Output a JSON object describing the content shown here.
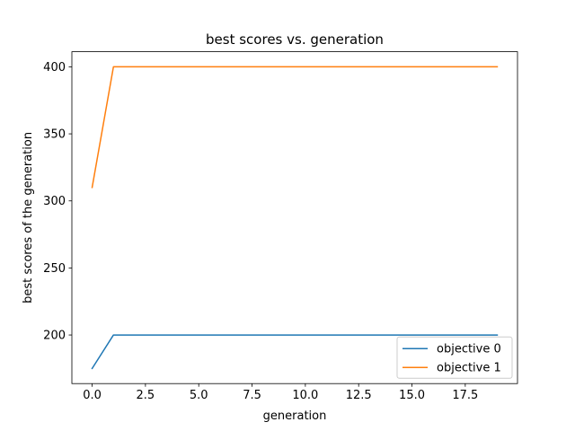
{
  "chart_data": {
    "type": "line",
    "title": "best scores vs. generation",
    "xlabel": "generation",
    "ylabel": "best scores of the generation",
    "x": [
      0,
      1,
      2,
      3,
      4,
      5,
      6,
      7,
      8,
      9,
      10,
      11,
      12,
      13,
      14,
      15,
      16,
      17,
      18,
      19
    ],
    "series": [
      {
        "name": "objective 0",
        "color": "#1f77b4",
        "values": [
          175,
          200,
          200,
          200,
          200,
          200,
          200,
          200,
          200,
          200,
          200,
          200,
          200,
          200,
          200,
          200,
          200,
          200,
          200,
          200
        ]
      },
      {
        "name": "objective 1",
        "color": "#ff7f0e",
        "values": [
          310,
          400,
          400,
          400,
          400,
          400,
          400,
          400,
          400,
          400,
          400,
          400,
          400,
          400,
          400,
          400,
          400,
          400,
          400,
          400
        ]
      }
    ],
    "xlim": [
      -0.95,
      19.95
    ],
    "ylim": [
      163.75,
      411.25
    ],
    "xticks": [
      0,
      2.5,
      5,
      7.5,
      10,
      12.5,
      15,
      17.5
    ],
    "xtick_labels": [
      "0.0",
      "2.5",
      "5.0",
      "7.5",
      "10.0",
      "12.5",
      "15.0",
      "17.5"
    ],
    "yticks": [
      200,
      250,
      300,
      350,
      400
    ],
    "ytick_labels": [
      "200",
      "250",
      "300",
      "350",
      "400"
    ],
    "grid": false,
    "legend_position": "lower-right"
  }
}
